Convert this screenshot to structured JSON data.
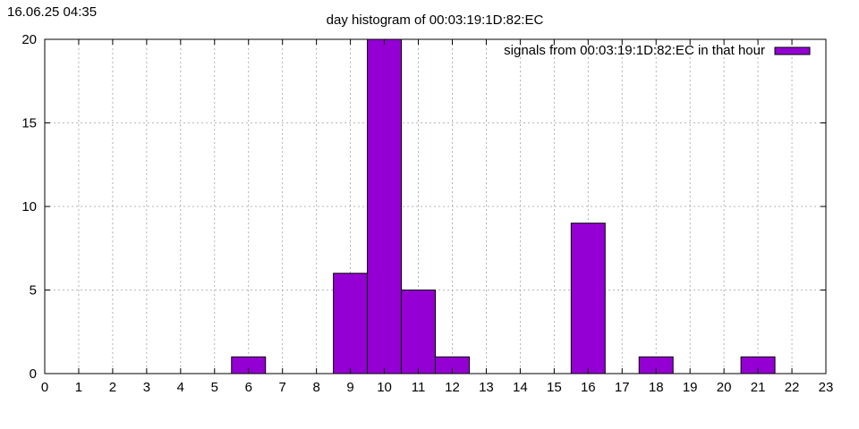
{
  "timestamp": "16.06.25 04:35",
  "chart_data": {
    "type": "bar",
    "title": "day histogram of 00:03:19:1D:82:EC",
    "xlabel": "",
    "ylabel": "",
    "xlim": [
      0,
      23
    ],
    "ylim": [
      0,
      20
    ],
    "x_ticks": [
      0,
      1,
      2,
      3,
      4,
      5,
      6,
      7,
      8,
      9,
      10,
      11,
      12,
      13,
      14,
      15,
      16,
      17,
      18,
      19,
      20,
      21,
      22,
      23
    ],
    "y_ticks": [
      0,
      5,
      10,
      15,
      20
    ],
    "grid": true,
    "legend": "top-right",
    "colors": {
      "bar": "#9400d3",
      "outline": "#000000",
      "grid": "#a0a0a0"
    },
    "series": [
      {
        "name": "signals from 00:03:19:1D:82:EC in that hour",
        "points": [
          {
            "x": 6,
            "y": 1
          },
          {
            "x": 9,
            "y": 6
          },
          {
            "x": 10,
            "y": 20
          },
          {
            "x": 11,
            "y": 5
          },
          {
            "x": 12,
            "y": 1
          },
          {
            "x": 16,
            "y": 9
          },
          {
            "x": 18,
            "y": 1
          },
          {
            "x": 21,
            "y": 1
          }
        ]
      }
    ]
  }
}
